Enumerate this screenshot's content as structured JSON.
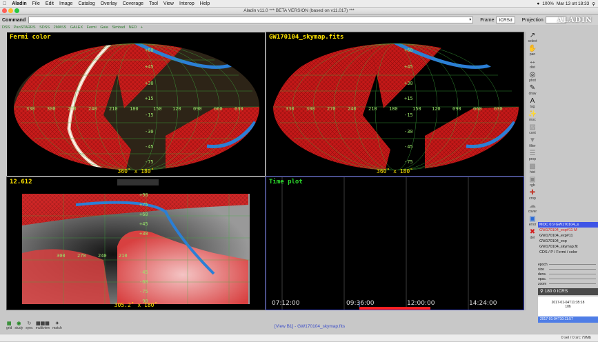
{
  "menubar": {
    "app": "Aladin",
    "items": [
      "File",
      "Edit",
      "Image",
      "Catalog",
      "Overlay",
      "Coverage",
      "Tool",
      "View",
      "Interop",
      "Help"
    ],
    "status_right": "100%",
    "datetime": "Mar 13 ott 18:33"
  },
  "window": {
    "title": "Aladin v11.0   *** BETA VERSION (based on v11.017) ***"
  },
  "command": {
    "label": "Command",
    "value": ""
  },
  "frame": {
    "label": "Frame",
    "value": "ICRSd"
  },
  "projection": {
    "label": "Projection",
    "value": ""
  },
  "logo": "ALADIN",
  "surveys": [
    "DSS",
    "PanSTARRS",
    "SDSS",
    "2MASS",
    "GALEX",
    "Fermi",
    "Gaia",
    "Simbad",
    "NED",
    "+"
  ],
  "views": {
    "v1": {
      "label": "Fermi color",
      "size": "360˚ x 180˚"
    },
    "v2": {
      "label": "GW170104_skymap.fits",
      "size": "360˚ x 180˚"
    },
    "v3": {
      "label": "12.612",
      "size": "305.2˚ x 180˚"
    },
    "v4": {
      "label": "Time plot"
    }
  },
  "grid_lon_labels": [
    "330",
    "300",
    "270",
    "240",
    "210",
    "180",
    "150",
    "120",
    "090",
    "060",
    "030",
    "000"
  ],
  "grid_lat_labels": [
    "+75",
    "+60",
    "+45",
    "+30",
    "+15",
    "+00",
    "-15",
    "-30",
    "-45",
    "-60",
    "-75"
  ],
  "v3_lon_labels": [
    "300",
    "270",
    "240",
    "210"
  ],
  "v3_lat_labels": [
    "+90",
    "+75",
    "+60",
    "+45",
    "+30",
    "-45",
    "-60",
    "-75",
    "-90"
  ],
  "timeplot": {
    "ticks": [
      "07:12:00",
      "09:36:00",
      "12:00:00",
      "14:24:00"
    ]
  },
  "tools": [
    {
      "icon": "select-icon",
      "label": "select"
    },
    {
      "icon": "pan-icon",
      "label": "pan"
    },
    {
      "icon": "dist-icon",
      "label": "dist"
    },
    {
      "icon": "phot-icon",
      "label": "phot"
    },
    {
      "icon": "draw-icon",
      "label": "draw"
    },
    {
      "icon": "tag-icon",
      "label": "tag"
    },
    {
      "icon": "moc-icon",
      "label": "moc"
    },
    {
      "icon": "cont-icon",
      "label": "cont"
    },
    {
      "icon": "filter-icon",
      "label": "filter"
    },
    {
      "icon": "prop-icon",
      "label": "prop"
    },
    {
      "icon": "hist-icon",
      "label": "hist"
    },
    {
      "icon": "rgb-icon",
      "label": "rgb"
    },
    {
      "icon": "crop-icon",
      "label": "crop"
    },
    {
      "icon": "cover-icon",
      "label": "cover"
    },
    {
      "icon": "assoc-icon",
      "label": "assoc"
    },
    {
      "icon": "error-icon",
      "label": "error"
    },
    {
      "icon": "del-icon",
      "label": "del"
    }
  ],
  "stack": [
    {
      "text": "MOC 0.9 GW170104_s",
      "style": "sel1"
    },
    {
      "text": "GW170104_exp#11 M",
      "style": "red"
    },
    {
      "text": "GW170104_exp#11",
      "style": ""
    },
    {
      "text": "GW170104_exp",
      "style": ""
    },
    {
      "text": "GW170104_skymap.fit",
      "style": ""
    },
    {
      "text": "CDS / P / Fermi / color",
      "style": ""
    }
  ],
  "sliders": [
    "epoch",
    "size",
    "dens.",
    "opac.",
    "zoom"
  ],
  "coords": "180 0 ICRS",
  "timebox": {
    "date": "2017-01-04T11:35:18",
    "zoom": "10h",
    "bar": "2017-01-04T10:11:57"
  },
  "bottomtools": [
    {
      "icon": "grid-icon",
      "label": "grid"
    },
    {
      "icon": "study-icon",
      "label": "study"
    },
    {
      "icon": "sync-icon",
      "label": "sync"
    },
    {
      "icon": "stretch-icon",
      "label": "multiview"
    },
    {
      "icon": "match-icon",
      "label": "match"
    }
  ],
  "view_caption": "[View B1] - GW170104_skymap.fits",
  "statusbar": "0 sel / 0 src   79Mb"
}
